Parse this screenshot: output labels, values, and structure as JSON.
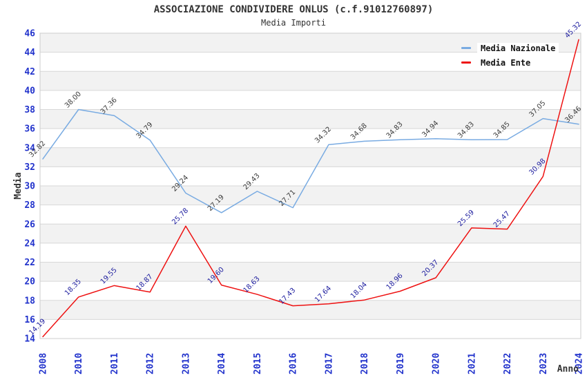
{
  "chart_data": {
    "type": "line",
    "title": "ASSOCIAZIONE CONDIVIDERE ONLUS (c.f.91012760897)",
    "subtitle": "Media Importi",
    "xlabel": "Anno",
    "ylabel": "Media",
    "categories": [
      "2008",
      "2010",
      "2011",
      "2012",
      "2013",
      "2014",
      "2015",
      "2016",
      "2017",
      "2018",
      "2019",
      "2020",
      "2021",
      "2022",
      "2023",
      "2024"
    ],
    "series": [
      {
        "name": "Media Nazionale",
        "color": "#79abe2",
        "label_color": "#3c3c3c",
        "values": [
          32.82,
          38.0,
          37.36,
          34.79,
          29.24,
          27.19,
          29.43,
          27.71,
          34.32,
          34.68,
          34.83,
          34.94,
          34.83,
          34.85,
          37.05,
          36.46
        ]
      },
      {
        "name": "Media Ente",
        "color": "#ee1111",
        "label_color": "#1c1c9e",
        "values": [
          14.19,
          18.35,
          19.55,
          18.87,
          25.78,
          19.6,
          18.63,
          17.43,
          17.64,
          18.04,
          18.96,
          20.37,
          25.59,
          25.47,
          30.98,
          45.32
        ]
      }
    ],
    "ylim": [
      14,
      46
    ],
    "ytick_step": 2,
    "legend_position": "top-right-inside",
    "grid": "horizontal-bands-alternating",
    "colors": {
      "tick_label": "#2233cc",
      "axis_label": "#333333",
      "band": "#f2f2f2",
      "gridline": "#d8d8d8",
      "border": "#cccccc",
      "background": "#ffffff"
    }
  }
}
